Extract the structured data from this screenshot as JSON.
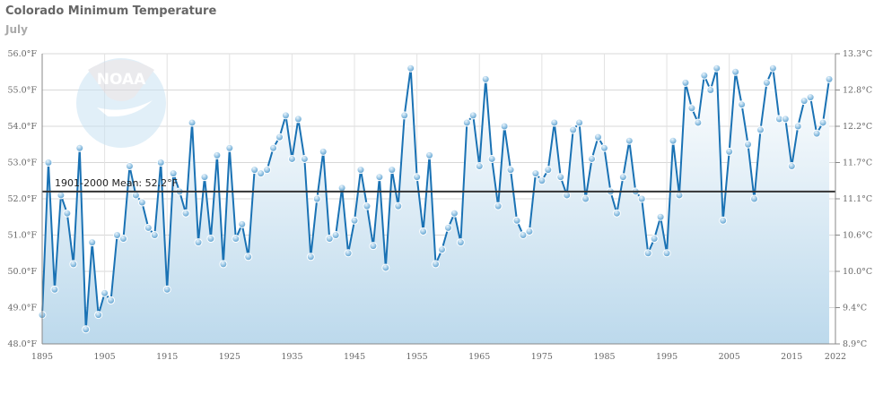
{
  "chart_data": {
    "type": "line",
    "title": "Colorado Minimum Temperature",
    "subtitle": "July",
    "xlabel": "",
    "ylabel": "",
    "xlim": [
      1895,
      2022
    ],
    "ylim": [
      48.0,
      56.0
    ],
    "x_ticks": [
      "1895",
      "1905",
      "1915",
      "1925",
      "1935",
      "1945",
      "1955",
      "1965",
      "1975",
      "1985",
      "1995",
      "2005",
      "2015",
      "2022"
    ],
    "y_ticks_left": [
      "48.0°F",
      "49.0°F",
      "50.0°F",
      "51.0°F",
      "52.0°F",
      "53.0°F",
      "54.0°F",
      "55.0°F",
      "56.0°F"
    ],
    "y_ticks_right": [
      "8.9°C",
      "9.4°C",
      "10.0°C",
      "10.6°C",
      "11.1°C",
      "11.7°C",
      "12.2°C",
      "12.8°C",
      "13.3°C"
    ],
    "grid": true,
    "mean_line": {
      "value": 52.2,
      "label": "1901-2000 Mean: 52.2°F"
    },
    "start_year": 1895,
    "values": [
      48.8,
      53.0,
      49.5,
      52.1,
      51.6,
      50.2,
      53.4,
      48.4,
      50.8,
      48.8,
      49.4,
      49.2,
      51.0,
      50.9,
      52.9,
      52.1,
      51.9,
      51.2,
      51.0,
      53.0,
      49.5,
      52.7,
      52.2,
      51.6,
      54.1,
      50.8,
      52.6,
      50.9,
      53.2,
      50.2,
      53.4,
      50.9,
      51.3,
      50.4,
      52.8,
      52.7,
      52.8,
      53.4,
      53.7,
      54.3,
      53.1,
      54.2,
      53.1,
      50.4,
      52.0,
      53.3,
      50.9,
      51.0,
      52.3,
      50.5,
      51.4,
      52.8,
      51.8,
      50.7,
      52.6,
      50.1,
      52.8,
      51.8,
      54.3,
      55.6,
      52.6,
      51.1,
      53.2,
      50.2,
      50.6,
      51.2,
      51.6,
      50.8,
      54.1,
      54.3,
      52.9,
      55.3,
      53.1,
      51.8,
      54.0,
      52.8,
      51.4,
      51.0,
      51.1,
      52.7,
      52.5,
      52.8,
      54.1,
      52.6,
      52.1,
      53.9,
      54.1,
      52.0,
      53.1,
      53.7,
      53.4,
      52.2,
      51.6,
      52.6,
      53.6,
      52.2,
      52.0,
      50.5,
      50.9,
      51.5,
      50.5,
      53.6,
      52.1,
      55.2,
      54.5,
      54.1,
      55.4,
      55.0,
      55.6,
      51.4,
      53.3,
      55.5,
      54.6,
      53.5,
      52.0,
      53.9,
      55.2,
      55.6,
      54.2,
      54.2,
      52.9,
      54.0,
      54.7,
      54.8,
      53.8,
      54.1,
      55.3
    ],
    "colors": {
      "line": "#1a72b4",
      "mean": "#333333",
      "fill_top": "#ffffff",
      "fill_bottom": "#bcd9ec"
    },
    "watermark": "NOAA"
  }
}
